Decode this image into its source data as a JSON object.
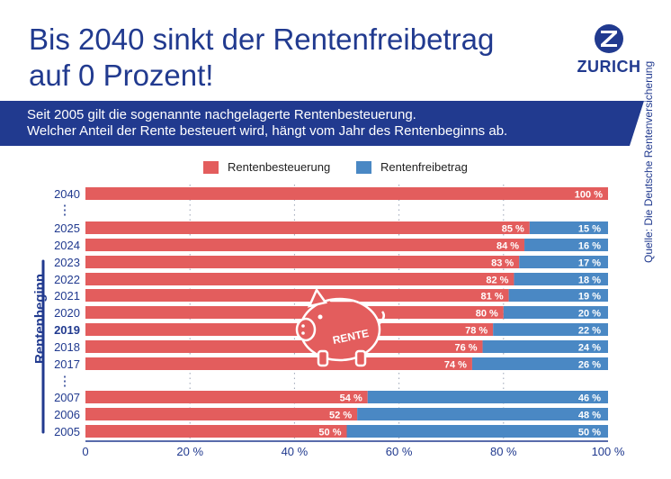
{
  "header": {
    "title_line1": "Bis 2040 sinkt der Rentenfreibetrag",
    "title_line2": "auf 0 Prozent!",
    "logo_text": "ZURICH"
  },
  "banner": {
    "line1": "Seit 2005 gilt die sogenannte nachgelagerte Rentenbesteuerung.",
    "line2": "Welcher Anteil der Rente besteuert wird, hängt vom Jahr des Rentenbeginns ab."
  },
  "source": "Quelle: Die Deutsche Rentenversicherung",
  "piggy_label": "RENTE",
  "colors": {
    "brand": "#213a8f",
    "besteuerung": "#e35d5d",
    "freibetrag": "#4a88c4"
  },
  "chart_data": {
    "type": "bar",
    "orientation": "horizontal",
    "stacked": true,
    "ylabel": "Rentenbeginn",
    "categories": [
      "2040",
      "2025",
      "2024",
      "2023",
      "2022",
      "2021",
      "2020",
      "2019",
      "2018",
      "2017",
      "2007",
      "2006",
      "2005"
    ],
    "highlight_category": "2019",
    "series": [
      {
        "name": "Rentenbesteuerung",
        "color": "#e35d5d",
        "values": [
          100,
          85,
          84,
          83,
          82,
          81,
          80,
          78,
          76,
          74,
          54,
          52,
          50
        ]
      },
      {
        "name": "Rentenfreibetrag",
        "color": "#4a88c4",
        "values": [
          0,
          15,
          16,
          17,
          18,
          19,
          20,
          22,
          24,
          26,
          46,
          48,
          50
        ]
      }
    ],
    "xlim": [
      0,
      100
    ],
    "xticks": [
      "0",
      "20 %",
      "40 %",
      "60 %",
      "80 %",
      "100 %"
    ],
    "gap_markers": [
      "⋮",
      "⋮"
    ],
    "legend_position": "top",
    "grid": "dotted vertical"
  }
}
